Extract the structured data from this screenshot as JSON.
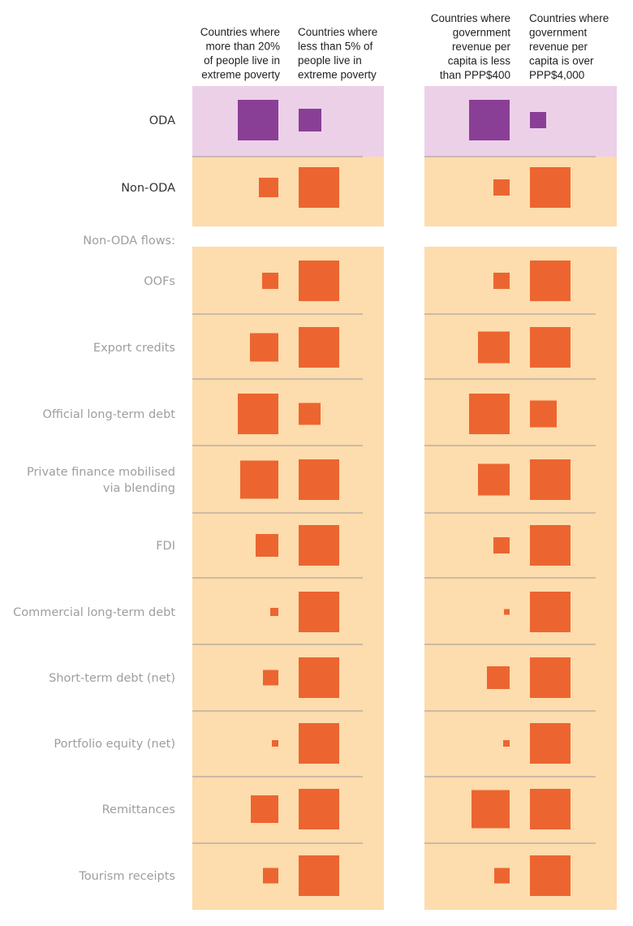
{
  "colors": {
    "oda_fill": "#8a3f96",
    "oda_background": "#ecd0e8",
    "non_oda_fill": "#ec6530",
    "non_oda_background": "#fddcad",
    "divider": "#9a9a9a"
  },
  "chart_data": {
    "type": "proportional-square-matrix",
    "title": "",
    "groups": [
      {
        "columns": [
          {
            "label_lines": [
              "Countries where",
              "more than 20%",
              "of people live in",
              "extreme poverty"
            ]
          },
          {
            "label_lines": [
              "Countries where",
              "less than 5% of",
              "people live in",
              "extreme poverty"
            ]
          }
        ]
      },
      {
        "columns": [
          {
            "label_lines": [
              "Countries where",
              "government",
              "revenue per",
              "capita is less",
              "than PPP$400"
            ]
          },
          {
            "label_lines": [
              "Countries where",
              "government",
              "revenue per",
              "capita is over",
              "PPP$4,000"
            ]
          }
        ]
      }
    ],
    "section_label": "Non-ODA flows:",
    "value_scale": "relative share of the flow received per column, where 1.0 is the largest square",
    "rows": [
      {
        "label_lines": [
          "ODA"
        ],
        "category": "oda",
        "values": [
          1.0,
          0.56,
          1.0,
          0.4
        ]
      },
      {
        "label_lines": [
          "Non-ODA"
        ],
        "category": "non_oda",
        "values": [
          0.48,
          1.0,
          0.4,
          1.0
        ]
      },
      {
        "label_lines": [
          "OOFs"
        ],
        "category": "non_oda",
        "values": [
          0.4,
          1.0,
          0.4,
          1.0
        ]
      },
      {
        "label_lines": [
          "Export credits"
        ],
        "category": "non_oda",
        "values": [
          0.7,
          1.0,
          0.78,
          1.0
        ]
      },
      {
        "label_lines": [
          "Official long-term debt"
        ],
        "category": "non_oda",
        "values": [
          1.0,
          0.54,
          1.0,
          0.66
        ]
      },
      {
        "label_lines": [
          "Private finance mobilised",
          "via blending"
        ],
        "category": "non_oda",
        "values": [
          0.94,
          1.0,
          0.78,
          1.0
        ]
      },
      {
        "label_lines": [
          "FDI"
        ],
        "category": "non_oda",
        "values": [
          0.56,
          1.0,
          0.4,
          1.0
        ]
      },
      {
        "label_lines": [
          "Commercial long-term debt"
        ],
        "category": "non_oda",
        "values": [
          0.2,
          1.0,
          0.14,
          1.0
        ]
      },
      {
        "label_lines": [
          "Short-term debt (net)"
        ],
        "category": "non_oda",
        "values": [
          0.38,
          1.0,
          0.56,
          1.0
        ]
      },
      {
        "label_lines": [
          "Portfolio equity (net)"
        ],
        "category": "non_oda",
        "values": [
          0.16,
          1.0,
          0.16,
          1.0
        ]
      },
      {
        "label_lines": [
          "Remittances"
        ],
        "category": "non_oda",
        "values": [
          0.68,
          1.0,
          0.94,
          1.0
        ]
      },
      {
        "label_lines": [
          "Tourism receipts"
        ],
        "category": "non_oda",
        "values": [
          0.38,
          1.0,
          0.38,
          1.0
        ]
      }
    ]
  }
}
